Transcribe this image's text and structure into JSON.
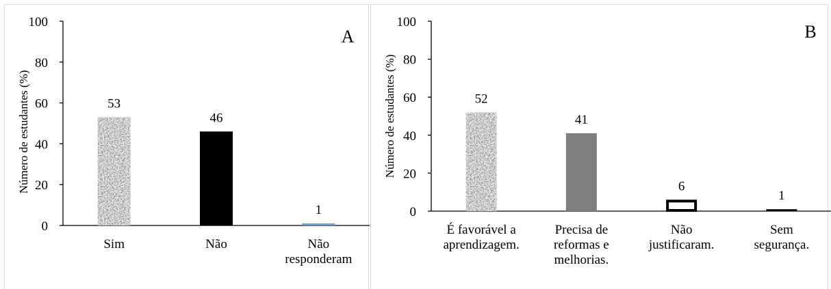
{
  "chart_data": [
    {
      "type": "bar",
      "title": "",
      "panel_label": "A",
      "ylabel": "Número de estudantes (%)",
      "xlabel": "",
      "ylim": [
        0,
        100
      ],
      "yticks": [
        0,
        20,
        40,
        60,
        80,
        100
      ],
      "grid": false,
      "categories": [
        [
          "Sim"
        ],
        [
          "Não"
        ],
        [
          "Não",
          "responderam"
        ]
      ],
      "values": [
        53,
        46,
        1
      ],
      "bar_styles": [
        {
          "fill": "granite",
          "color": "#9a9a9a"
        },
        {
          "fill": "solid",
          "color": "#000000"
        },
        {
          "fill": "solid",
          "color": "#6f9fc8"
        }
      ]
    },
    {
      "type": "bar",
      "title": "",
      "panel_label": "B",
      "ylabel": "Número de estudantes (%)",
      "xlabel": "",
      "ylim": [
        0,
        100
      ],
      "yticks": [
        0,
        20,
        40,
        60,
        80,
        100
      ],
      "grid": false,
      "categories": [
        [
          "É favorável  a",
          "aprendizagem."
        ],
        [
          "Precisa de",
          "reformas e",
          "melhorias."
        ],
        [
          "Não",
          "justificaram."
        ],
        [
          "Sem",
          "segurança."
        ]
      ],
      "values": [
        52,
        41,
        6,
        1
      ],
      "bar_styles": [
        {
          "fill": "granite",
          "color": "#9a9a9a"
        },
        {
          "fill": "solid",
          "color": "#7f7f7f"
        },
        {
          "fill": "outline",
          "color": "#000000"
        },
        {
          "fill": "solid",
          "color": "#000000"
        }
      ]
    }
  ]
}
